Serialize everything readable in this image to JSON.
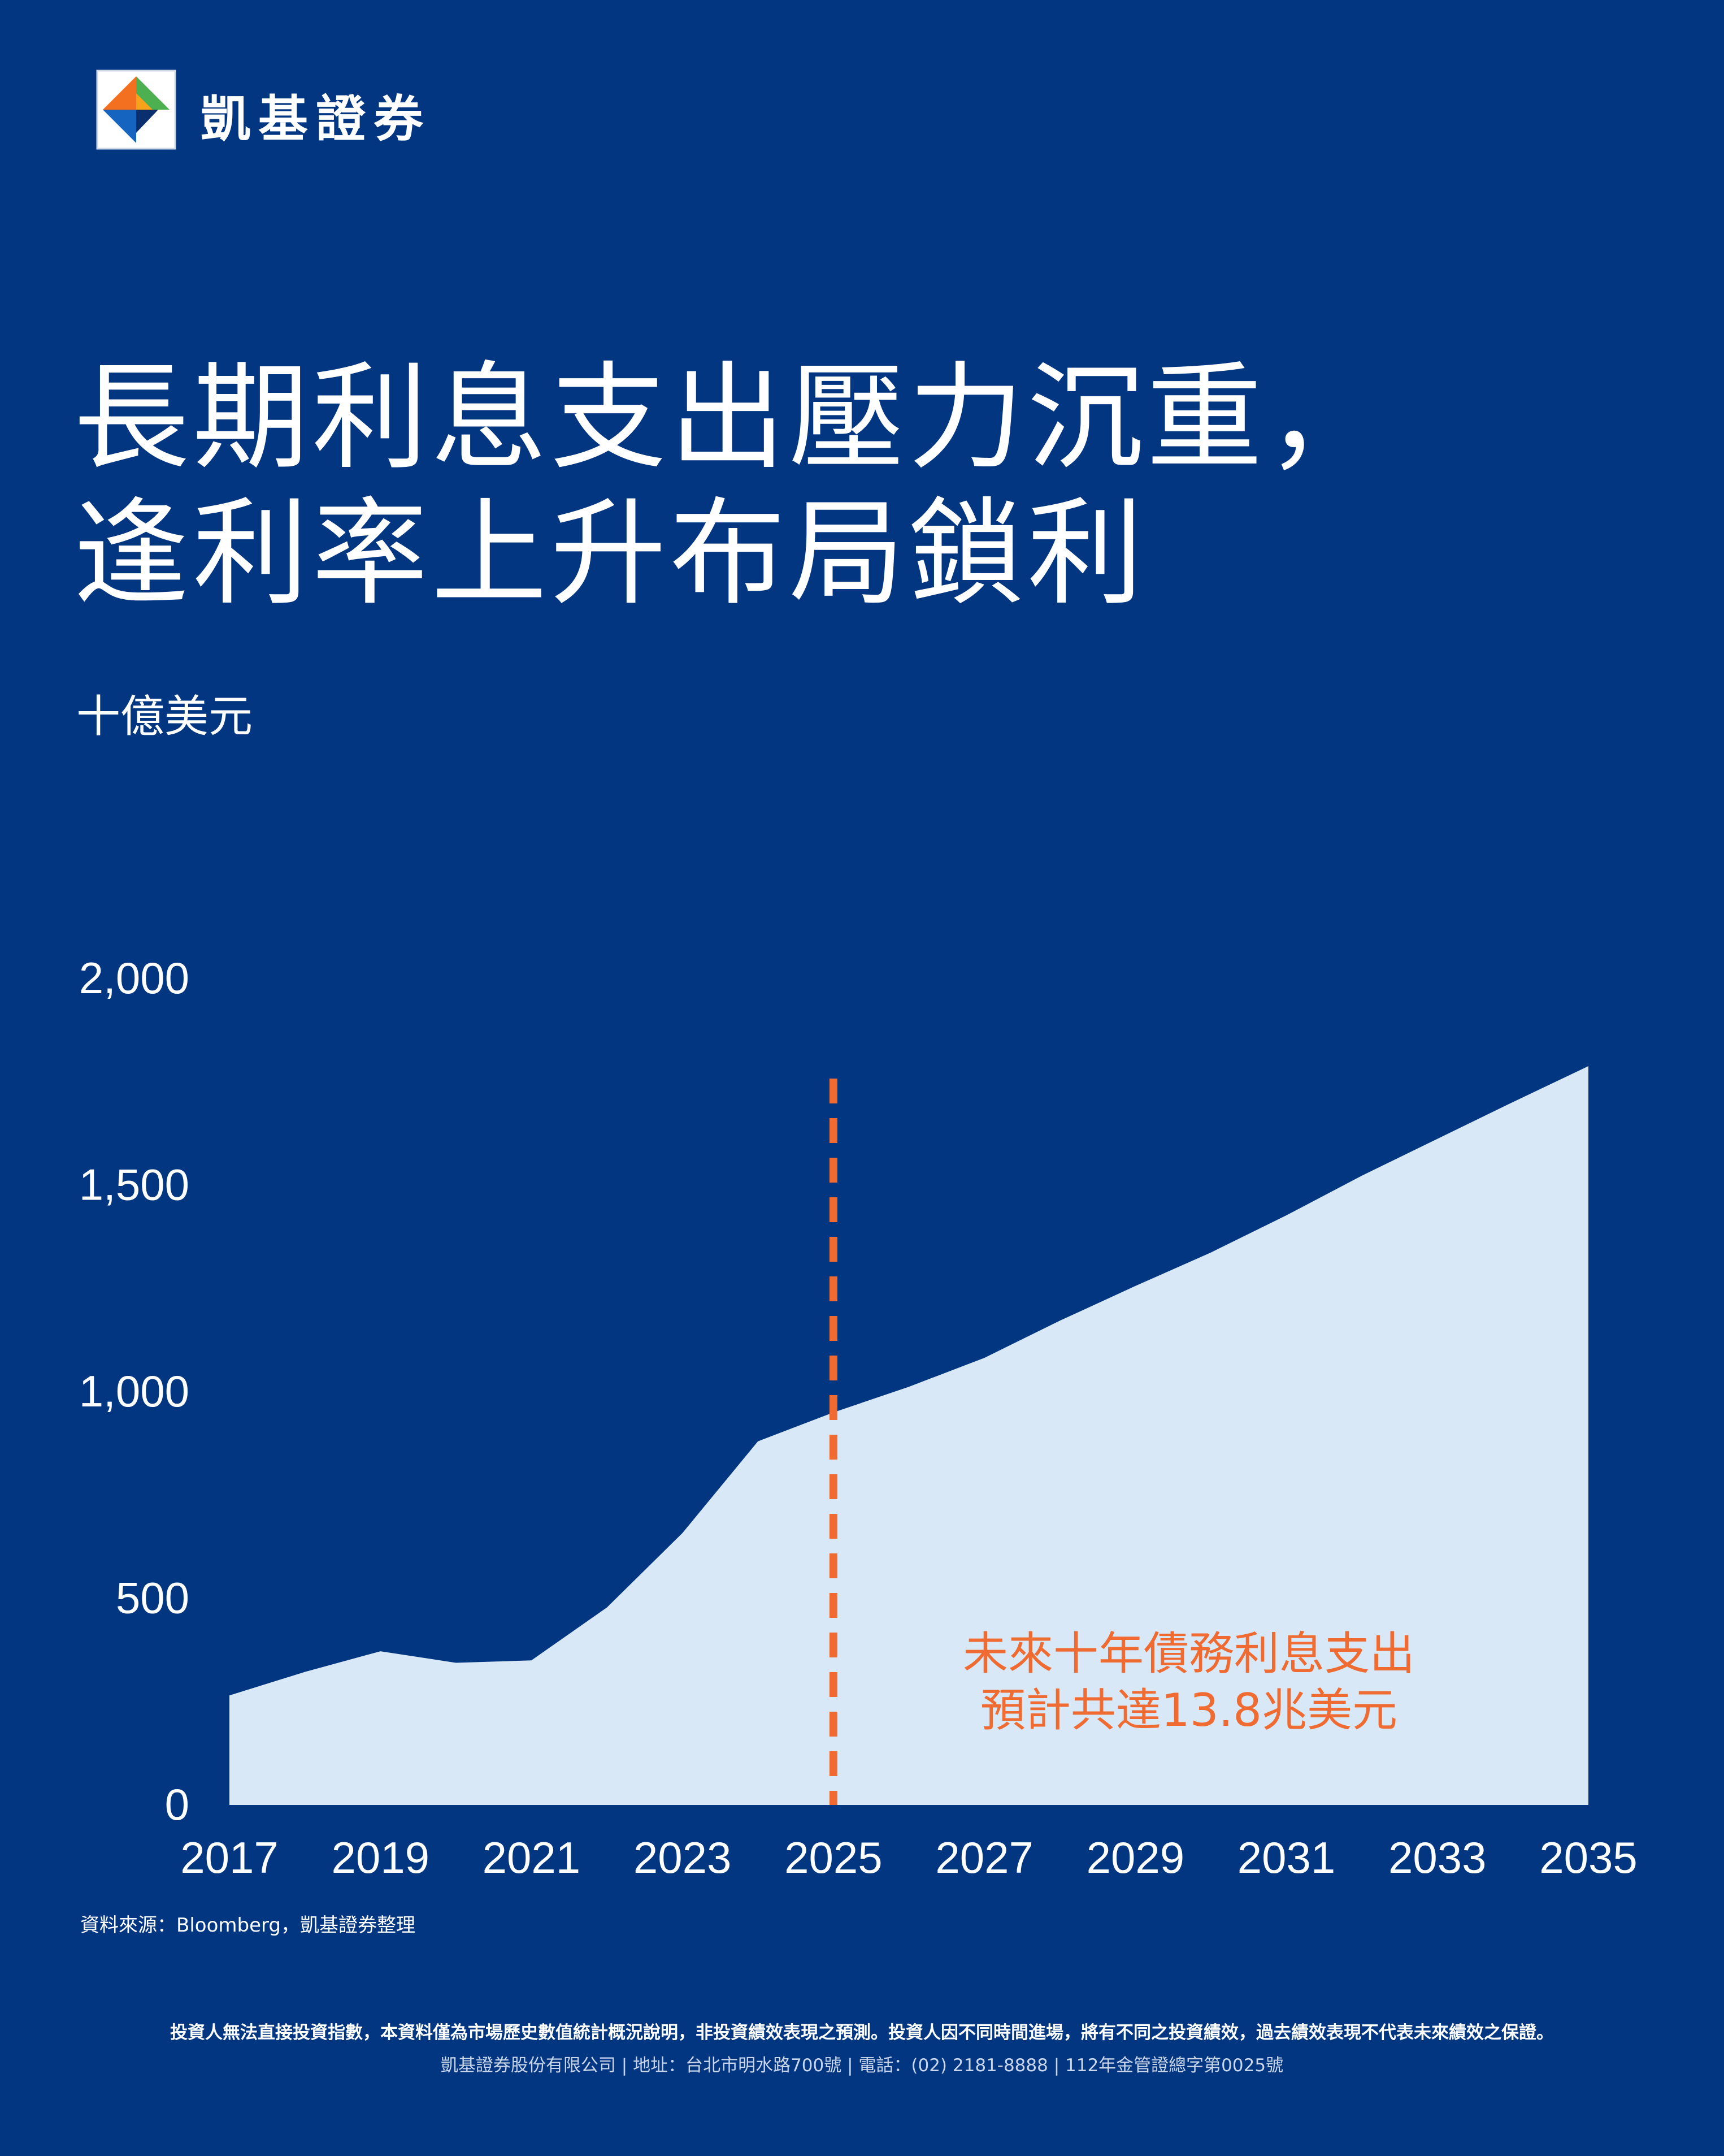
{
  "header": {
    "brand_name": "凱基證券"
  },
  "headline": {
    "line1": "長期利息支出壓力沉重，",
    "line2": "逢利率上升布局鎖利"
  },
  "colors": {
    "background": "#023680",
    "area_fill": "#d8e8f6",
    "accent": "#ef6b32",
    "text": "#ffffff"
  },
  "chart_data": {
    "type": "area",
    "ylabel": "十億美元",
    "x": [
      2017,
      2018,
      2019,
      2020,
      2021,
      2022,
      2023,
      2024,
      2025,
      2026,
      2027,
      2028,
      2029,
      2030,
      2031,
      2032,
      2033,
      2034,
      2035
    ],
    "values": [
      265,
      322,
      372,
      344,
      350,
      478,
      658,
      880,
      950,
      1012,
      1082,
      1172,
      1256,
      1337,
      1427,
      1523,
      1612,
      1701,
      1788
    ],
    "xticks": [
      "2017",
      "2019",
      "2021",
      "2023",
      "2025",
      "2027",
      "2029",
      "2031",
      "2033",
      "2035"
    ],
    "yticks": [
      "0",
      "500",
      "1,000",
      "1,500",
      "2,000"
    ],
    "xlim": [
      2017,
      2035
    ],
    "ylim": [
      0,
      2000
    ],
    "divider_x": 2025,
    "annotation": {
      "line1": "未來十年債務利息支出",
      "line2": "預計共達13.8兆美元"
    }
  },
  "footer": {
    "source": "資料來源：Bloomberg，凱基證券整理",
    "disclaimer": "投資人無法直接投資指數，本資料僅為市場歷史數值統計概況說明，非投資績效表現之預測。投資人因不同時間進場，將有不同之投資績效，過去績效表現不代表未來績效之保證。",
    "company_info": "凱基證券股份有限公司 | 地址：台北市明水路700號 | 電話：(02) 2181-8888 | 112年金管證總字第0025號"
  }
}
